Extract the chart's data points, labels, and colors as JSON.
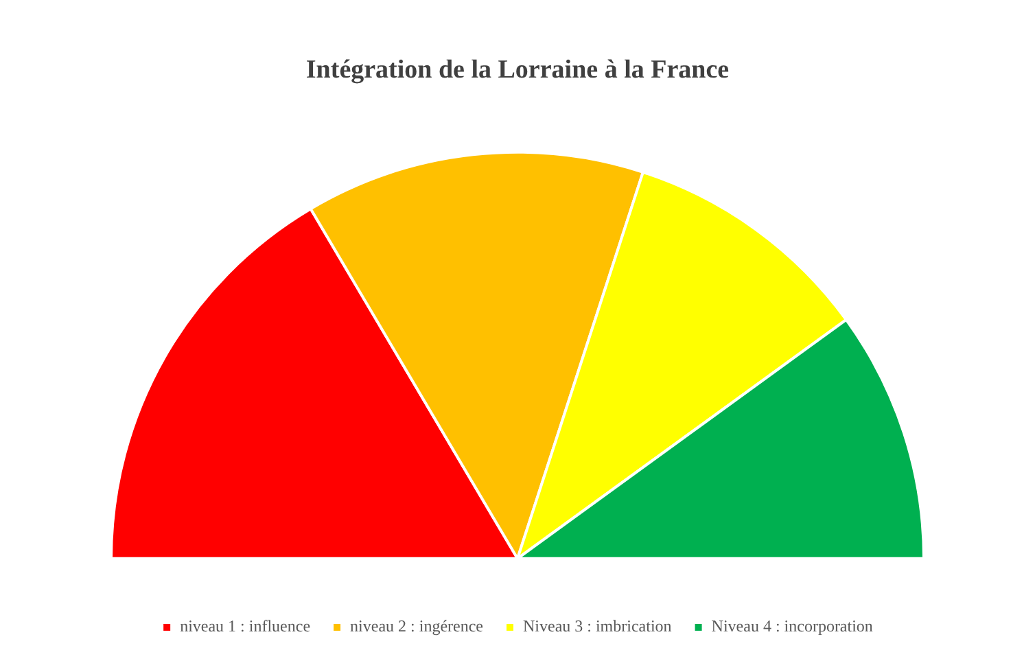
{
  "chart_data": {
    "type": "pie",
    "title": "Intégration de la Lorraine à la France",
    "categories": [
      "niveau 1 : influence",
      "niveau 2 : ingérence",
      "Niveau 3 : imbrication",
      "Niveau 4 : incorporation"
    ],
    "values": [
      33,
      27,
      20,
      20
    ],
    "colors": [
      "#ff0000",
      "#ffc000",
      "#ffff00",
      "#00b050"
    ],
    "legend": "bottom"
  }
}
